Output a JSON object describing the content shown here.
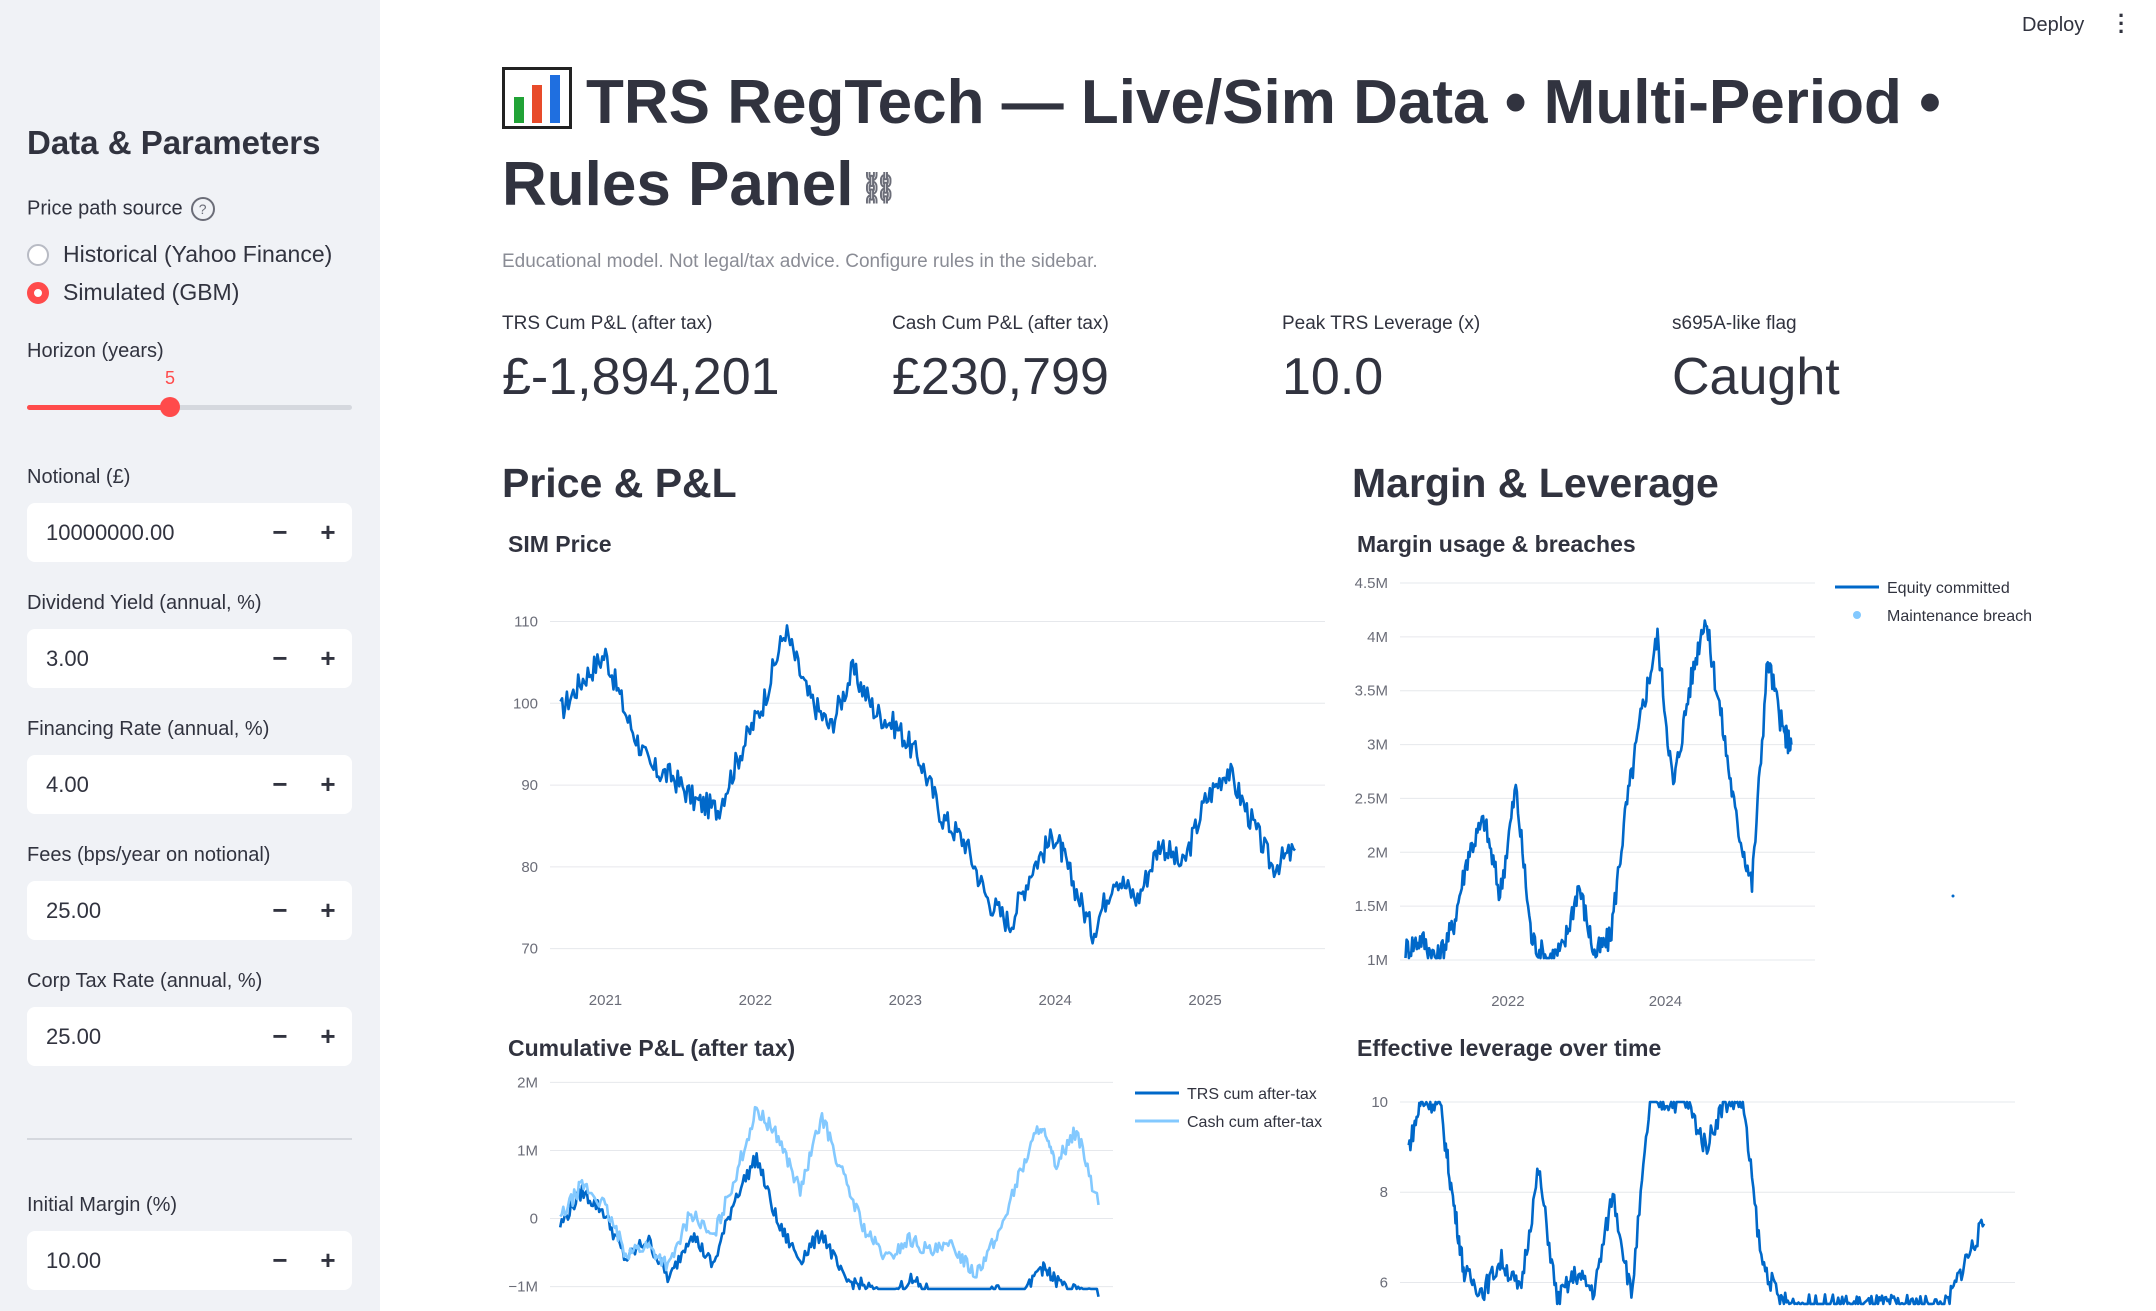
{
  "app": {
    "deploy_label": "Deploy",
    "menu_icon": "kebab-menu-icon"
  },
  "sidebar": {
    "title": "Data & Parameters",
    "price_source": {
      "label": "Price path source",
      "options": [
        "Historical (Yahoo Finance)",
        "Simulated (GBM)"
      ],
      "selected": "Simulated (GBM)"
    },
    "horizon": {
      "label": "Horizon (years)",
      "value": "5",
      "level_fraction": 0.45
    },
    "notional": {
      "label": "Notional (£)",
      "value": "10000000.00"
    },
    "dividend_yield": {
      "label": "Dividend Yield (annual, %)",
      "value": "3.00"
    },
    "financing_rate": {
      "label": "Financing Rate (annual, %)",
      "value": "4.00"
    },
    "fees": {
      "label": "Fees (bps/year on notional)",
      "value": "25.00"
    },
    "corp_tax": {
      "label": "Corp Tax Rate (annual, %)",
      "value": "25.00"
    },
    "initial_margin": {
      "label": "Initial Margin (%)",
      "value": "10.00"
    },
    "minus_label": "−",
    "plus_label": "+"
  },
  "main": {
    "title": "TRS RegTech — Live/Sim Data • Multi-Period • Rules Panel",
    "caption": "Educational model. Not legal/tax advice. Configure rules in the sidebar.",
    "metrics": [
      {
        "label": "TRS Cum P&L (after tax)",
        "value": "£-1,894,201"
      },
      {
        "label": "Cash Cum P&L (after tax)",
        "value": "£230,799"
      },
      {
        "label": "Peak TRS Leverage (x)",
        "value": "10.0"
      },
      {
        "label": "s695A-like flag",
        "value": "Caught"
      }
    ],
    "sections": {
      "left": "Price & P&L",
      "right": "Margin & Leverage"
    },
    "colors": {
      "accent": "#ff4b4b",
      "dark_blue": "#0068c9",
      "light_blue": "#83c9ff"
    }
  },
  "chart_data": [
    {
      "type": "line",
      "title": "SIM Price",
      "x_ticks": [
        "2021",
        "2022",
        "2023",
        "2024",
        "2025"
      ],
      "y_ticks": [
        "70",
        "80",
        "90",
        "100",
        "110"
      ],
      "ylim": [
        68,
        113
      ],
      "grid": true,
      "series": [
        {
          "color": "#0068c9",
          "x": [
            2020.7,
            2020.85,
            2021.0,
            2021.15,
            2021.3,
            2021.45,
            2021.6,
            2021.75,
            2021.9,
            2022.05,
            2022.2,
            2022.35,
            2022.5,
            2022.65,
            2022.8,
            2022.95,
            2023.1,
            2023.25,
            2023.4,
            2023.55,
            2023.7,
            2023.85,
            2024.0,
            2024.1,
            2024.25,
            2024.4,
            2024.55,
            2024.7,
            2024.85,
            2025.0,
            2025.15,
            2025.3,
            2025.45,
            2025.6
          ],
          "values": [
            99,
            103,
            106,
            98,
            92,
            91,
            88,
            87,
            94,
            100,
            109,
            101,
            97,
            104,
            99,
            97,
            93,
            86,
            83,
            76,
            73,
            80,
            84,
            79,
            72,
            79,
            76,
            83,
            80,
            88,
            92,
            86,
            80,
            82
          ]
        }
      ]
    },
    {
      "type": "line",
      "title": "Margin usage & breaches",
      "x_ticks": [
        "2022",
        "2024"
      ],
      "y_ticks": [
        "1M",
        "1.5M",
        "2M",
        "2.5M",
        "3M",
        "3.5M",
        "4M",
        "4.5M"
      ],
      "ylim": [
        1000000,
        4500000
      ],
      "grid": true,
      "legend": "top-right",
      "series": [
        {
          "name": "Equity committed",
          "color": "#0068c9",
          "x": [
            2020.7,
            2020.9,
            2021.1,
            2021.3,
            2021.5,
            2021.7,
            2021.9,
            2022.1,
            2022.3,
            2022.5,
            2022.7,
            2022.9,
            2023.1,
            2023.3,
            2023.5,
            2023.7,
            2023.9,
            2024.1,
            2024.3,
            2024.5,
            2024.7,
            2024.9,
            2025.1,
            2025.3,
            2025.5,
            2025.6
          ],
          "values": [
            1100000,
            1200000,
            1000000,
            1300000,
            2000000,
            2300000,
            1600000,
            2600000,
            1200000,
            1000000,
            1100000,
            1700000,
            1050000,
            1200000,
            2400000,
            3300000,
            4000000,
            2600000,
            3500000,
            4200000,
            3300000,
            2300000,
            1700000,
            3800000,
            3100000,
            3000000
          ]
        },
        {
          "name": "Maintenance breach",
          "color": "#83c9ff",
          "mode": "markers",
          "x": [
            2026.3
          ],
          "values": [
            1550000
          ]
        }
      ]
    },
    {
      "type": "line",
      "title": "Cumulative P&L (after tax)",
      "x_ticks": [],
      "y_ticks": [
        "−1M",
        "0",
        "1M",
        "2M"
      ],
      "ylim": [
        -1050000,
        2050000
      ],
      "grid": true,
      "legend": "top-right",
      "series": [
        {
          "name": "TRS cum after-tax",
          "color": "#0068c9",
          "x": [
            2020.7,
            2020.85,
            2021.0,
            2021.15,
            2021.3,
            2021.45,
            2021.6,
            2021.75,
            2021.9,
            2022.05,
            2022.2,
            2022.35,
            2022.5,
            2022.65,
            2022.8,
            2022.95,
            2023.1,
            2023.25,
            2023.4,
            2023.55,
            2023.7,
            2023.85,
            2024.0,
            2024.1,
            2024.25,
            2024.4
          ],
          "values": [
            -100000,
            400000,
            100000,
            -600000,
            -300000,
            -900000,
            -200000,
            -700000,
            300000,
            900000,
            -100000,
            -600000,
            -200000,
            -900000,
            -1000000,
            -1200000,
            -900000,
            -1100000,
            -1300000,
            -1200000,
            -1000000,
            -1300000,
            -700000,
            -900000,
            -1100000,
            -1150000
          ]
        },
        {
          "name": "Cash cum after-tax",
          "color": "#83c9ff",
          "x": [
            2020.7,
            2020.85,
            2021.0,
            2021.15,
            2021.3,
            2021.45,
            2021.6,
            2021.75,
            2021.9,
            2022.05,
            2022.2,
            2022.35,
            2022.5,
            2022.65,
            2022.8,
            2022.95,
            2023.1,
            2023.25,
            2023.4,
            2023.55,
            2023.7,
            2023.85,
            2024.0,
            2024.1,
            2024.25,
            2024.4
          ],
          "values": [
            0,
            500000,
            200000,
            -500000,
            -400000,
            -700000,
            100000,
            -300000,
            600000,
            1600000,
            1200000,
            400000,
            1500000,
            600000,
            -200000,
            -600000,
            -300000,
            -500000,
            -400000,
            -800000,
            -300000,
            600000,
            1400000,
            800000,
            1300000,
            200000
          ]
        }
      ]
    },
    {
      "type": "line",
      "title": "Effective leverage over time",
      "x_ticks": [],
      "y_ticks": [
        "6",
        "8",
        "10"
      ],
      "ylim": [
        5.5,
        10.2
      ],
      "grid": true,
      "series": [
        {
          "color": "#0068c9",
          "x": [
            2020.7,
            2020.8,
            2020.95,
            2021.05,
            2021.15,
            2021.3,
            2021.45,
            2021.6,
            2021.75,
            2021.9,
            2022.05,
            2022.2,
            2022.35,
            2022.5,
            2022.65,
            2022.8,
            2022.95,
            2023.1,
            2023.25,
            2023.4,
            2023.55,
            2023.7,
            2023.85,
            2024.0,
            2024.15,
            2024.3,
            2024.45,
            2024.6,
            2024.75,
            2024.9,
            2025.05,
            2025.2,
            2025.35
          ],
          "values": [
            9.0,
            10.0,
            10.0,
            8.0,
            6.2,
            5.8,
            6.5,
            5.8,
            8.5,
            5.6,
            6.2,
            5.8,
            8.0,
            5.7,
            10.0,
            10.0,
            10.0,
            9.0,
            10.0,
            10.0,
            6.5,
            5.6,
            5.5,
            5.5,
            5.5,
            5.5,
            5.5,
            5.5,
            5.5,
            5.5,
            5.5,
            6.5,
            7.3
          ]
        }
      ]
    }
  ]
}
